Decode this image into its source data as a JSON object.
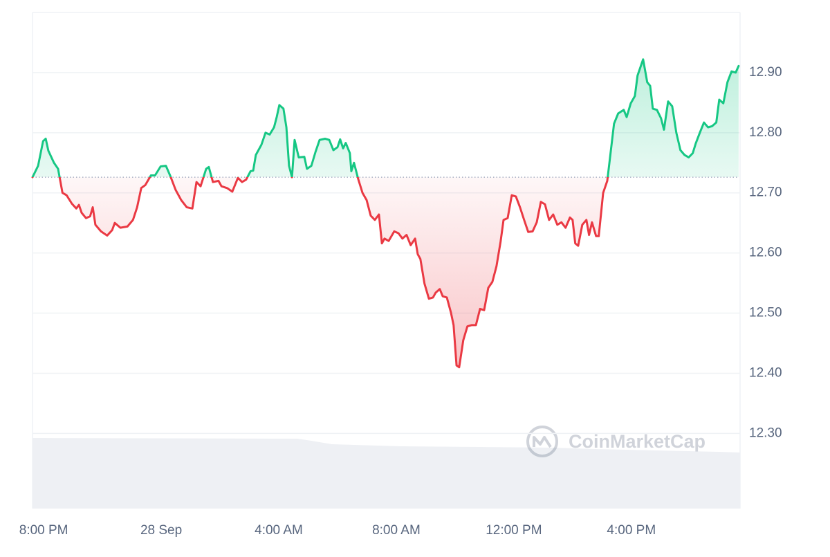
{
  "chart_data": {
    "type": "baseline-line",
    "watermark": "CoinMarketCap",
    "up_color": "#16c784",
    "down_color": "#ea3943",
    "baseline": 12.726,
    "grid": true,
    "xlim": [
      -0.38,
      23.7
    ],
    "ylim": [
      12.175,
      13.0
    ],
    "xticks": [
      {
        "value": 0,
        "label": "8:00 PM"
      },
      {
        "value": 4,
        "label": "28 Sep"
      },
      {
        "value": 8,
        "label": "4:00 AM"
      },
      {
        "value": 12,
        "label": "8:00 AM"
      },
      {
        "value": 16,
        "label": "12:00 PM"
      },
      {
        "value": 20,
        "label": "4:00 PM"
      }
    ],
    "yticks": [
      {
        "value": 12.3,
        "label": "12.30"
      },
      {
        "value": 12.4,
        "label": "12.40"
      },
      {
        "value": 12.5,
        "label": "12.50"
      },
      {
        "value": 12.6,
        "label": "12.60"
      },
      {
        "value": 12.7,
        "label": "12.70"
      },
      {
        "value": 12.8,
        "label": "12.80"
      },
      {
        "value": 12.9,
        "label": "12.90"
      }
    ],
    "x": [
      -0.38,
      -0.19,
      -0.02,
      0.07,
      0.16,
      0.35,
      0.49,
      0.64,
      0.78,
      0.96,
      1.11,
      1.2,
      1.29,
      1.44,
      1.58,
      1.67,
      1.76,
      1.95,
      2.16,
      2.33,
      2.42,
      2.61,
      2.85,
      3.04,
      3.18,
      3.32,
      3.46,
      3.65,
      3.79,
      3.98,
      4.16,
      4.31,
      4.49,
      4.68,
      4.87,
      5.06,
      5.2,
      5.34,
      5.53,
      5.62,
      5.76,
      5.95,
      6.05,
      6.24,
      6.42,
      6.61,
      6.75,
      6.89,
      7.04,
      7.13,
      7.22,
      7.41,
      7.55,
      7.69,
      7.84,
      7.93,
      8.02,
      8.16,
      8.26,
      8.35,
      8.45,
      8.54,
      8.68,
      8.87,
      8.96,
      9.11,
      9.25,
      9.39,
      9.58,
      9.72,
      9.86,
      10.0,
      10.09,
      10.19,
      10.28,
      10.42,
      10.47,
      10.56,
      10.71,
      10.85,
      10.99,
      11.13,
      11.27,
      11.41,
      11.51,
      11.6,
      11.74,
      11.93,
      12.07,
      12.21,
      12.35,
      12.49,
      12.64,
      12.73,
      12.82,
      12.96,
      13.11,
      13.25,
      13.34,
      13.48,
      13.58,
      13.72,
      13.86,
      13.95,
      14.05,
      14.14,
      14.28,
      14.42,
      14.56,
      14.71,
      14.85,
      14.99,
      15.13,
      15.27,
      15.41,
      15.55,
      15.65,
      15.79,
      15.93,
      16.07,
      16.21,
      16.35,
      16.49,
      16.64,
      16.78,
      16.92,
      17.06,
      17.2,
      17.34,
      17.48,
      17.62,
      17.76,
      17.91,
      18.0,
      18.09,
      18.19,
      18.33,
      18.47,
      18.56,
      18.66,
      18.8,
      18.89,
      19.04,
      19.18,
      19.27,
      19.41,
      19.55,
      19.74,
      19.84,
      19.98,
      20.12,
      20.21,
      20.4,
      20.54,
      20.64,
      20.73,
      20.87,
      21.01,
      21.11,
      21.25,
      21.39,
      21.53,
      21.67,
      21.81,
      21.95,
      22.09,
      22.19,
      22.33,
      22.47,
      22.61,
      22.75,
      22.89,
      22.99,
      23.13,
      23.27,
      23.41,
      23.55,
      23.65
    ],
    "values": [
      12.726,
      12.745,
      12.786,
      12.79,
      12.77,
      12.75,
      12.74,
      12.7,
      12.696,
      12.682,
      12.674,
      12.68,
      12.667,
      12.658,
      12.661,
      12.676,
      12.647,
      12.636,
      12.629,
      12.638,
      12.65,
      12.642,
      12.644,
      12.655,
      12.676,
      12.708,
      12.713,
      12.729,
      12.729,
      12.744,
      12.745,
      12.728,
      12.705,
      12.688,
      12.676,
      12.674,
      12.718,
      12.711,
      12.74,
      12.743,
      12.718,
      12.72,
      12.711,
      12.708,
      12.702,
      12.725,
      12.718,
      12.722,
      12.736,
      12.737,
      12.763,
      12.78,
      12.8,
      12.797,
      12.809,
      12.826,
      12.846,
      12.84,
      12.809,
      12.745,
      12.726,
      12.788,
      12.759,
      12.76,
      12.74,
      12.745,
      12.768,
      12.788,
      12.79,
      12.788,
      12.771,
      12.776,
      12.789,
      12.774,
      12.783,
      12.766,
      12.736,
      12.75,
      12.722,
      12.7,
      12.688,
      12.662,
      12.655,
      12.664,
      12.616,
      12.624,
      12.62,
      12.636,
      12.633,
      12.624,
      12.63,
      12.613,
      12.624,
      12.598,
      12.59,
      12.549,
      12.524,
      12.526,
      12.534,
      12.54,
      12.528,
      12.526,
      12.501,
      12.48,
      12.413,
      12.41,
      12.455,
      12.478,
      12.48,
      12.48,
      12.507,
      12.505,
      12.542,
      12.552,
      12.578,
      12.619,
      12.655,
      12.658,
      12.696,
      12.694,
      12.676,
      12.655,
      12.635,
      12.636,
      12.651,
      12.685,
      12.681,
      12.655,
      12.664,
      12.647,
      12.651,
      12.642,
      12.659,
      12.655,
      12.616,
      12.612,
      12.647,
      12.655,
      12.63,
      12.651,
      12.628,
      12.628,
      12.7,
      12.72,
      12.757,
      12.815,
      12.832,
      12.838,
      12.826,
      12.849,
      12.861,
      12.895,
      12.922,
      12.884,
      12.878,
      12.84,
      12.838,
      12.824,
      12.805,
      12.852,
      12.844,
      12.8,
      12.771,
      12.763,
      12.759,
      12.766,
      12.782,
      12.8,
      12.817,
      12.809,
      12.811,
      12.817,
      12.855,
      12.849,
      12.884,
      12.902,
      12.9,
      12.911
    ]
  }
}
